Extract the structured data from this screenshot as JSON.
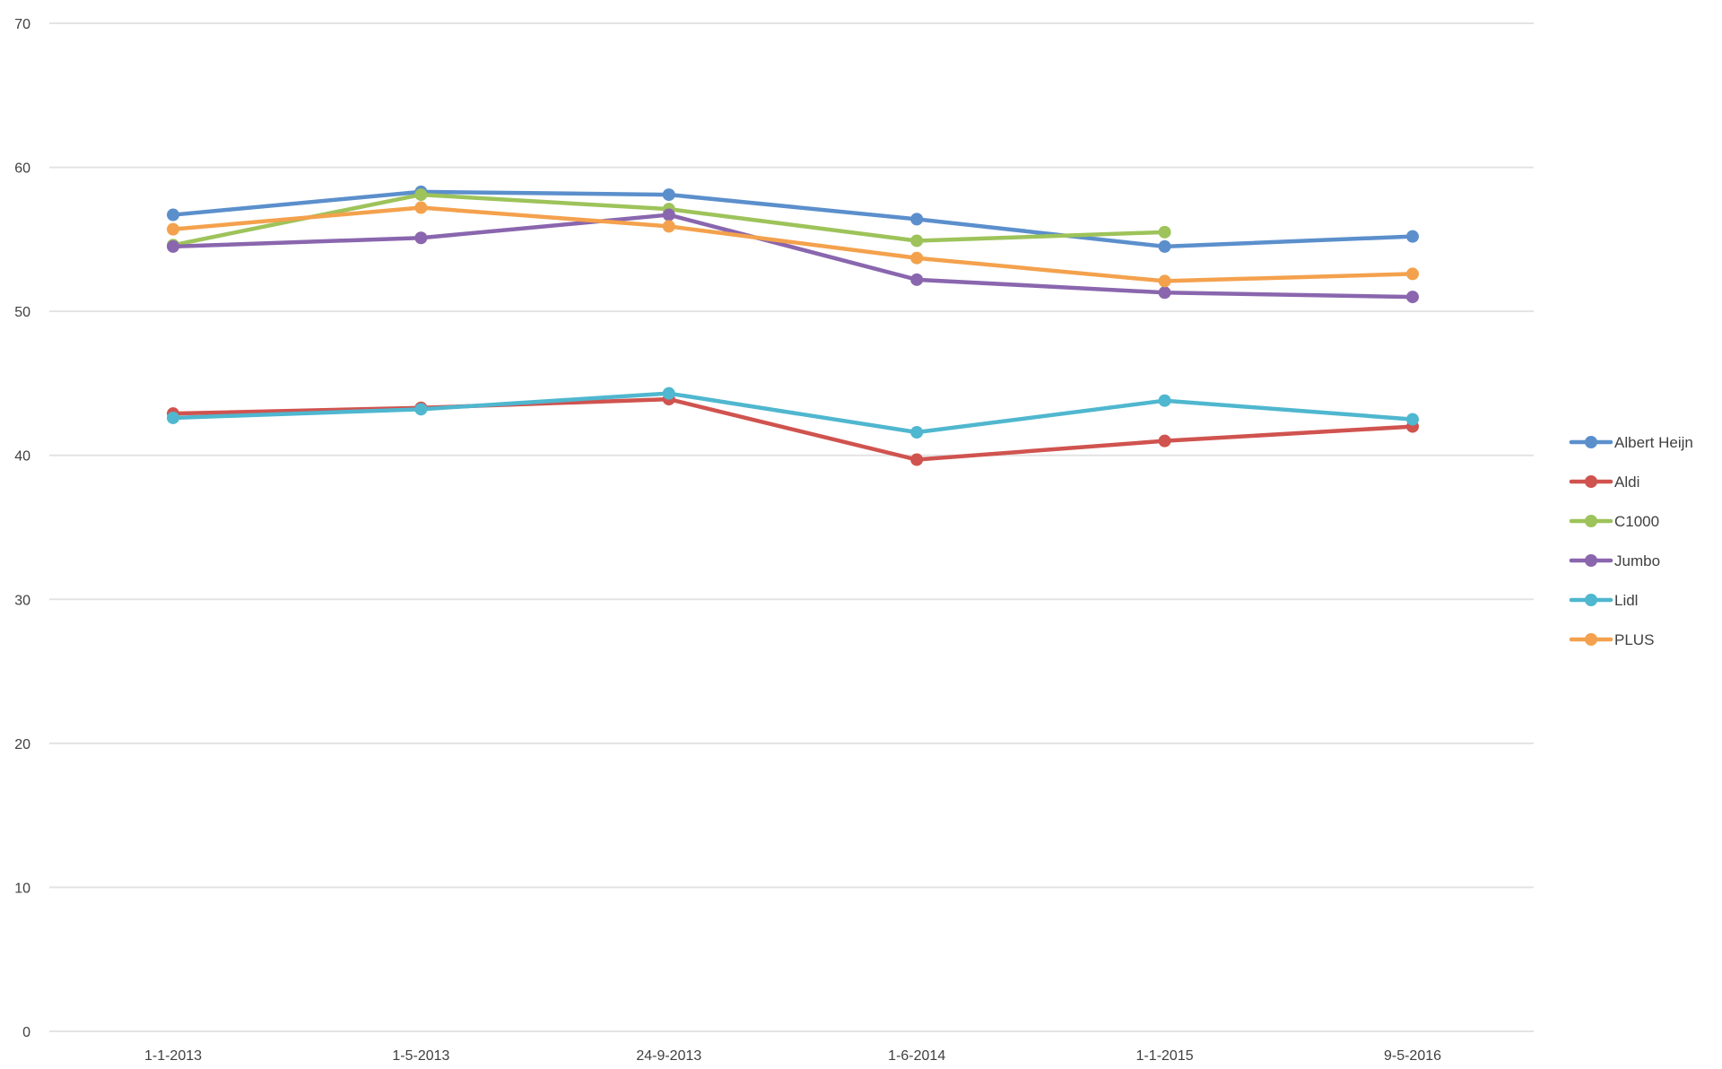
{
  "chart_data": {
    "type": "line",
    "title": "",
    "xlabel": "",
    "ylabel": "",
    "categories": [
      "1-1-2013",
      "1-5-2013",
      "24-9-2013",
      "1-6-2014",
      "1-1-2015",
      "9-5-2016"
    ],
    "ylim": [
      0,
      70
    ],
    "yticks": [
      0,
      10,
      20,
      30,
      40,
      50,
      60,
      70
    ],
    "grid": true,
    "legend_position": "right",
    "series": [
      {
        "name": "Albert Heijn",
        "color": "#5b8fcc",
        "values": [
          56.7,
          58.3,
          58.1,
          56.4,
          54.5,
          55.2
        ]
      },
      {
        "name": "Aldi",
        "color": "#d0534f",
        "values": [
          42.9,
          43.3,
          43.9,
          39.7,
          41.0,
          42.0
        ]
      },
      {
        "name": "C1000",
        "color": "#9dc35a",
        "values": [
          54.6,
          58.1,
          57.1,
          54.9,
          55.5,
          null
        ]
      },
      {
        "name": "Jumbo",
        "color": "#8a66ae",
        "values": [
          54.5,
          55.1,
          56.7,
          52.2,
          51.3,
          51.0
        ]
      },
      {
        "name": "Lidl",
        "color": "#4fb7cf",
        "values": [
          42.6,
          43.2,
          44.3,
          41.6,
          43.8,
          42.5
        ]
      },
      {
        "name": "PLUS",
        "color": "#f4a14d",
        "values": [
          55.7,
          57.2,
          55.9,
          53.7,
          52.1,
          52.6
        ]
      }
    ]
  }
}
